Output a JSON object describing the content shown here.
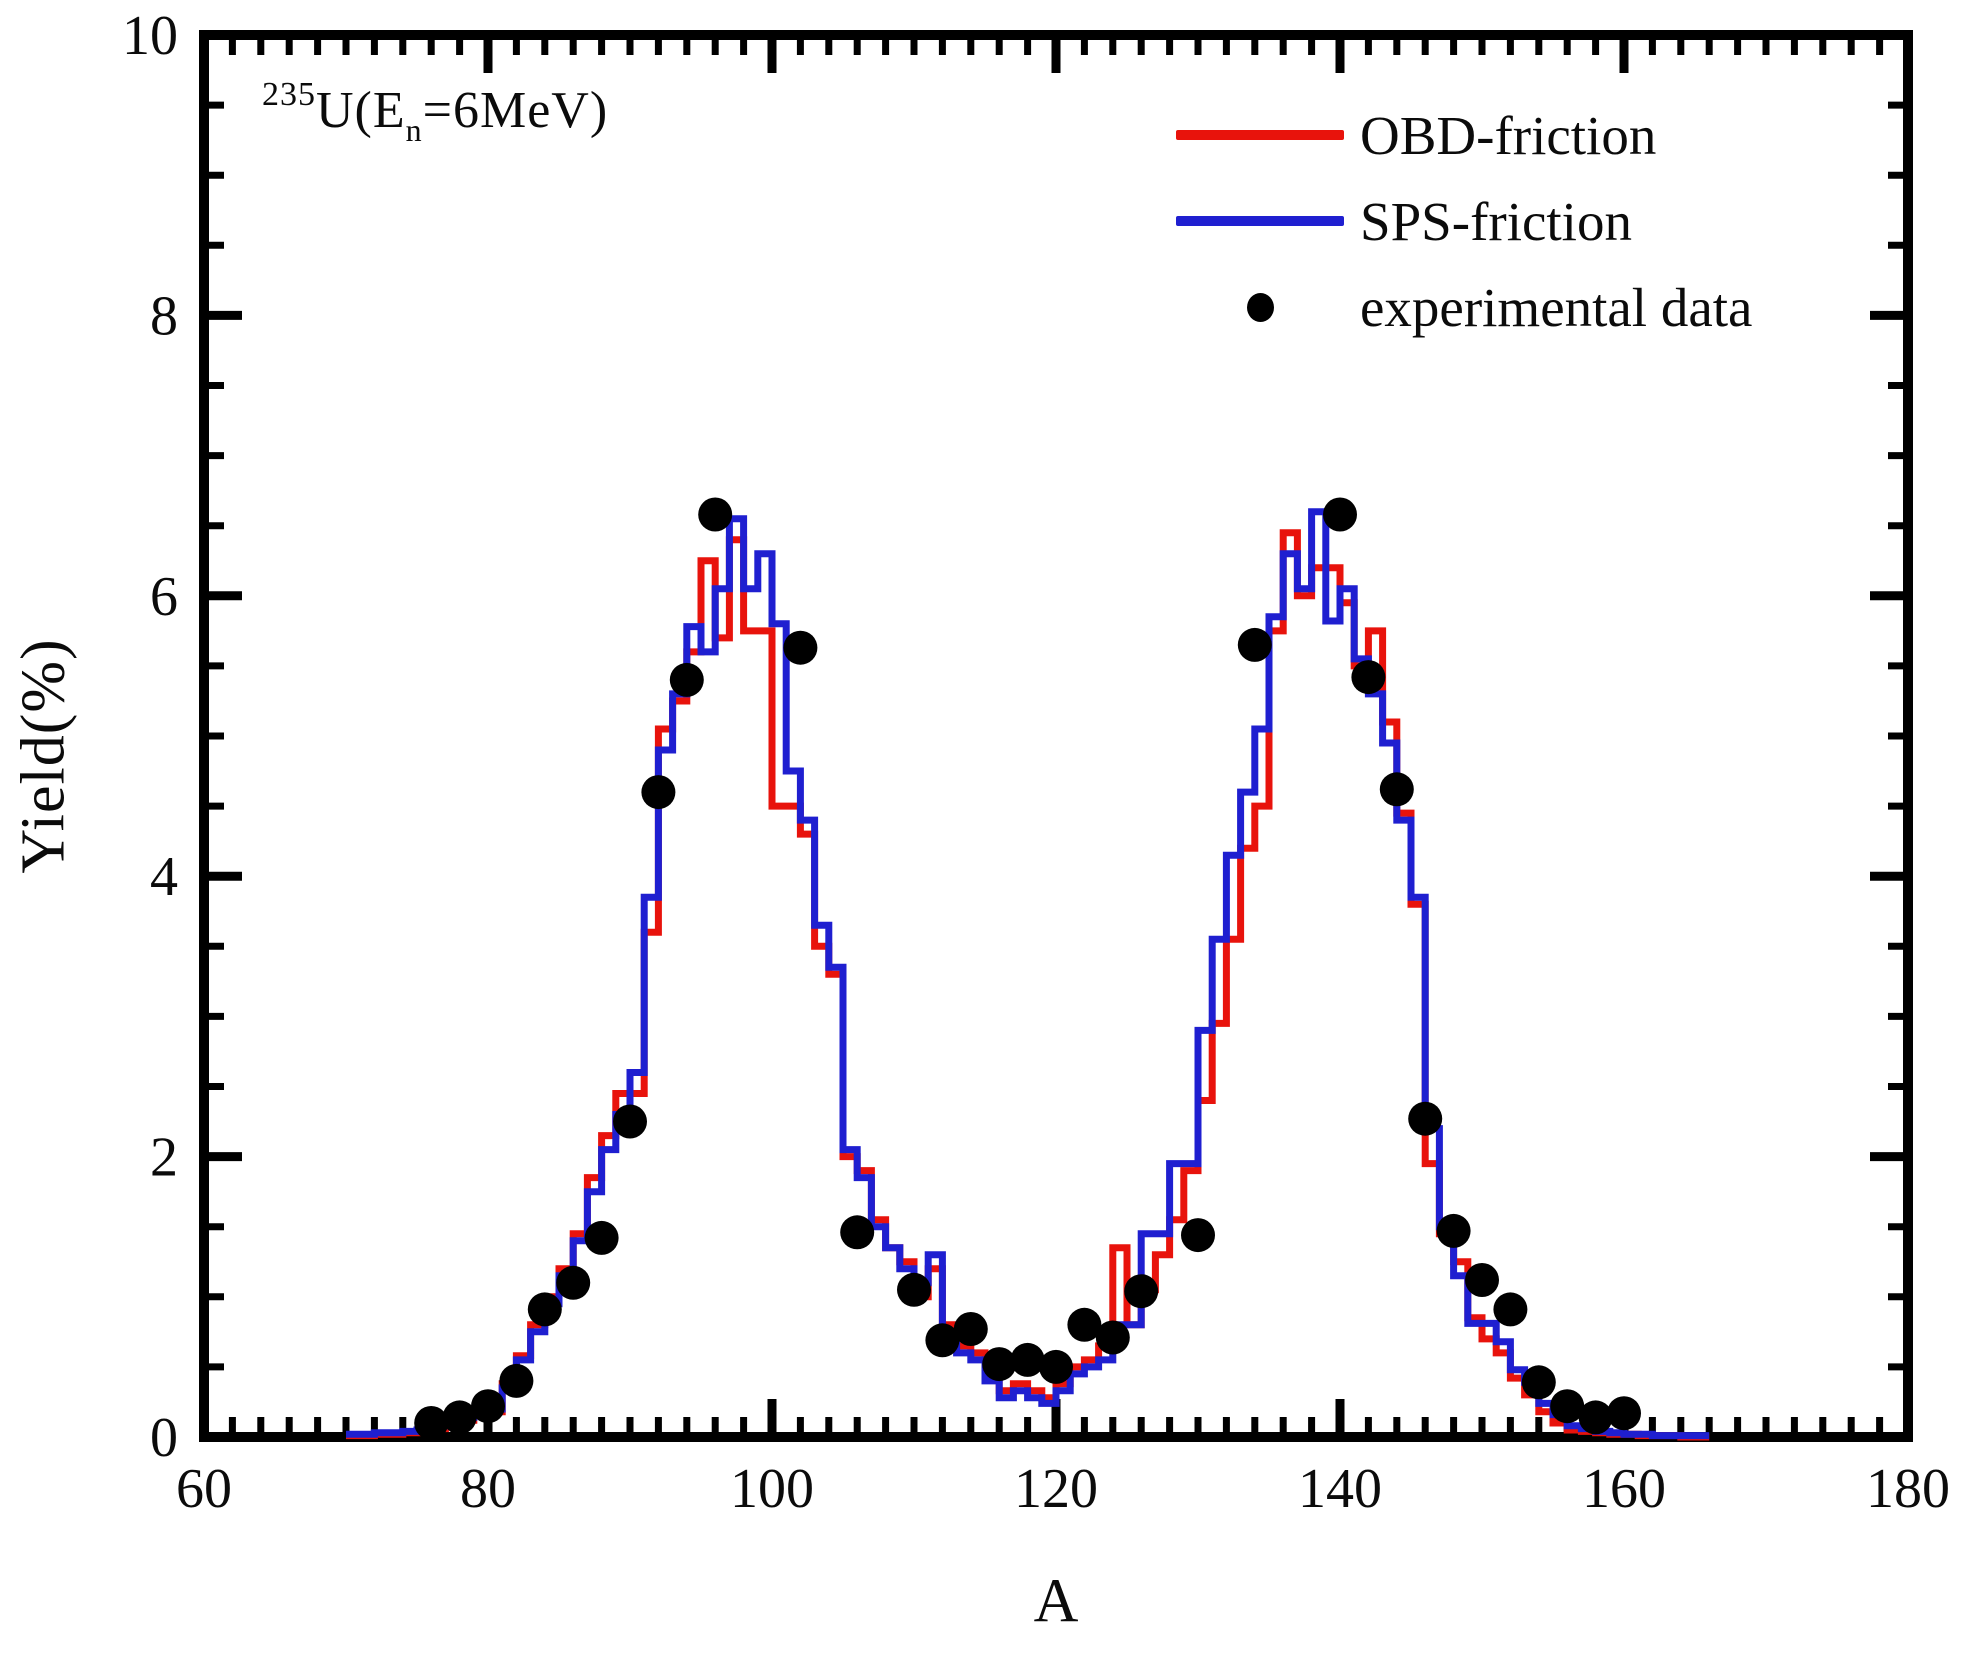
{
  "figure": {
    "annotation": {
      "isotope_mass": "235",
      "body_before_sub": "U(E",
      "subscript": "n",
      "body_after_sub": "=6MeV)"
    },
    "axes": {
      "x_label": "A",
      "y_label": "Yield(%)"
    },
    "legend": {
      "items": [
        {
          "label": "OBD-friction",
          "marker": "line",
          "color": "#e8130c"
        },
        {
          "label": "SPS-friction",
          "marker": "line",
          "color": "#1f1fd0"
        },
        {
          "label": "experimental data",
          "marker": "dot",
          "color": "#000000"
        }
      ]
    }
  },
  "chart_data": {
    "type": "step-histogram+scatter",
    "title": "235U(En=6MeV)",
    "xlabel": "A",
    "ylabel": "Yield(%)",
    "xlim": [
      60,
      180
    ],
    "ylim": [
      0,
      10
    ],
    "x_major_ticks": [
      60,
      80,
      100,
      120,
      140,
      160,
      180
    ],
    "x_minor_tick_step": 2,
    "y_major_ticks": [
      0,
      2,
      4,
      6,
      8,
      10
    ],
    "y_minor_tick_step": 0.5,
    "grid": false,
    "legend_position": "upper right",
    "axis_color": "#000000",
    "bin_start": 70,
    "bin_width": 1,
    "series": [
      {
        "name": "OBD-friction",
        "color": "#e8130c",
        "style": "step",
        "values": [
          0.01,
          0.01,
          0.02,
          0.02,
          0.03,
          0.04,
          0.06,
          0.09,
          0.12,
          0.17,
          0.18,
          0.38,
          0.58,
          0.8,
          1.0,
          1.2,
          1.45,
          1.85,
          2.15,
          2.45,
          2.45,
          3.6,
          5.05,
          5.25,
          5.6,
          6.25,
          5.7,
          6.4,
          5.75,
          5.75,
          4.5,
          4.5,
          4.3,
          3.5,
          3.3,
          2.0,
          1.9,
          1.55,
          1.35,
          1.25,
          1.0,
          1.2,
          0.8,
          0.65,
          0.6,
          0.45,
          0.33,
          0.38,
          0.33,
          0.28,
          0.38,
          0.5,
          0.55,
          0.65,
          1.35,
          0.8,
          1.05,
          1.3,
          1.55,
          1.9,
          2.4,
          2.95,
          3.55,
          4.2,
          4.5,
          5.75,
          6.45,
          6.0,
          6.2,
          6.2,
          5.95,
          5.5,
          5.75,
          5.1,
          4.45,
          3.8,
          1.95,
          1.45,
          1.25,
          0.85,
          0.7,
          0.6,
          0.42,
          0.3,
          0.18,
          0.1,
          0.05,
          0.04,
          0.03,
          0.02,
          0.02,
          0.01,
          0.01,
          0.01,
          0.0,
          0.0
        ]
      },
      {
        "name": "SPS-friction",
        "color": "#1f1fd0",
        "style": "step",
        "values": [
          0.02,
          0.02,
          0.03,
          0.03,
          0.04,
          0.05,
          0.08,
          0.1,
          0.14,
          0.18,
          0.2,
          0.35,
          0.55,
          0.75,
          0.95,
          1.15,
          1.4,
          1.75,
          2.05,
          2.3,
          2.6,
          3.85,
          4.9,
          5.3,
          5.78,
          5.6,
          6.05,
          6.55,
          6.05,
          6.3,
          5.8,
          4.75,
          4.4,
          3.65,
          3.35,
          2.05,
          1.85,
          1.5,
          1.35,
          1.2,
          1.1,
          1.3,
          0.75,
          0.6,
          0.55,
          0.4,
          0.28,
          0.33,
          0.28,
          0.24,
          0.33,
          0.45,
          0.5,
          0.55,
          0.8,
          0.8,
          1.45,
          1.45,
          1.95,
          1.95,
          2.9,
          3.55,
          4.15,
          4.6,
          5.05,
          5.85,
          6.3,
          6.05,
          6.6,
          5.82,
          6.05,
          5.55,
          5.3,
          4.95,
          4.4,
          3.85,
          2.2,
          1.5,
          1.15,
          0.81,
          0.81,
          0.68,
          0.48,
          0.39,
          0.24,
          0.16,
          0.08,
          0.06,
          0.04,
          0.03,
          0.02,
          0.02,
          0.01,
          0.01,
          0.01,
          0.01
        ]
      }
    ],
    "scatter": {
      "name": "experimental data",
      "color": "#000000",
      "points": [
        [
          76,
          0.1
        ],
        [
          78,
          0.14
        ],
        [
          80,
          0.22
        ],
        [
          82,
          0.4
        ],
        [
          84,
          0.91
        ],
        [
          86,
          1.1
        ],
        [
          88,
          1.42
        ],
        [
          90,
          2.25
        ],
        [
          92,
          4.6
        ],
        [
          94,
          5.4
        ],
        [
          96,
          6.58
        ],
        [
          102,
          5.63
        ],
        [
          106,
          1.46
        ],
        [
          110,
          1.05
        ],
        [
          112,
          0.69
        ],
        [
          114,
          0.77
        ],
        [
          116,
          0.52
        ],
        [
          118,
          0.55
        ],
        [
          120,
          0.5
        ],
        [
          122,
          0.8
        ],
        [
          124,
          0.71
        ],
        [
          126,
          1.04
        ],
        [
          130,
          1.44
        ],
        [
          134,
          5.65
        ],
        [
          140,
          6.58
        ],
        [
          142,
          5.42
        ],
        [
          144,
          4.62
        ],
        [
          146,
          2.27
        ],
        [
          148,
          1.47
        ],
        [
          150,
          1.12
        ],
        [
          152,
          0.91
        ],
        [
          154,
          0.39
        ],
        [
          156,
          0.22
        ],
        [
          158,
          0.14
        ],
        [
          160,
          0.17
        ]
      ]
    }
  }
}
